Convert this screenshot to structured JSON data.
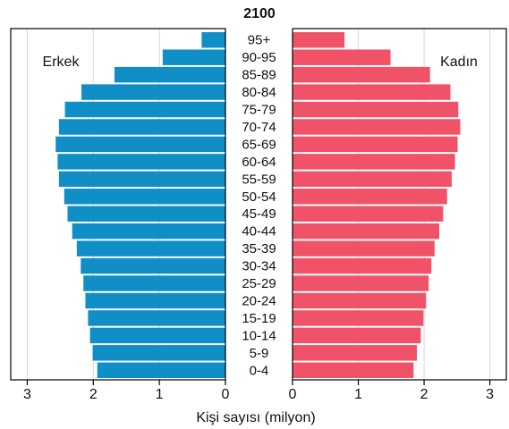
{
  "chart_data": {
    "type": "bar",
    "title": "2100",
    "xlabel": "Kişi sayısı (milyon)",
    "categories": [
      "95+",
      "90-95",
      "85-89",
      "80-84",
      "75-79",
      "70-74",
      "65-69",
      "60-64",
      "55-59",
      "50-54",
      "45-49",
      "40-44",
      "35-39",
      "30-34",
      "25-29",
      "20-24",
      "15-19",
      "10-14",
      "5-9",
      "0-4"
    ],
    "series": [
      {
        "name": "Erkek",
        "color": "#0f8fc6",
        "values": [
          0.36,
          0.95,
          1.68,
          2.18,
          2.43,
          2.52,
          2.57,
          2.54,
          2.52,
          2.44,
          2.39,
          2.32,
          2.25,
          2.19,
          2.15,
          2.12,
          2.08,
          2.05,
          2.01,
          1.94
        ]
      },
      {
        "name": "Kadın",
        "color": "#f05268",
        "values": [
          0.79,
          1.49,
          2.09,
          2.4,
          2.52,
          2.55,
          2.51,
          2.47,
          2.42,
          2.35,
          2.29,
          2.23,
          2.16,
          2.11,
          2.07,
          2.03,
          1.99,
          1.95,
          1.89,
          1.84
        ]
      }
    ],
    "xlim": [
      0,
      3.25
    ],
    "xticks": [
      "3",
      "2",
      "1",
      "0"
    ],
    "xticks_right": [
      "0",
      "1",
      "2",
      "3"
    ],
    "grid": true
  }
}
